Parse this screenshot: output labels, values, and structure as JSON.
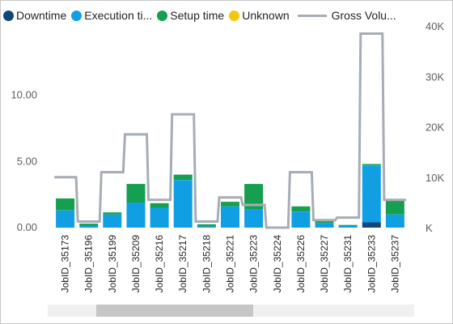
{
  "chart_data": {
    "type": "bar",
    "stacked": true,
    "categories": [
      "JobID_35173",
      "JobID_35196",
      "JobID_35199",
      "JobID_35209",
      "JobID_35216",
      "JobID_35217",
      "JobID_35218",
      "JobID_35221",
      "JobID_35223",
      "JobID_35224",
      "JobID_35226",
      "JobID_35227",
      "JobID_35231",
      "JobID_35233",
      "JobID_35237"
    ],
    "series": [
      {
        "name": "Downtime",
        "color": "#12467a",
        "values": [
          0,
          0,
          0,
          0,
          0,
          0,
          0,
          0,
          0,
          0,
          0,
          0,
          0,
          0.4,
          0
        ]
      },
      {
        "name": "Execution ti...",
        "color": "#119fe3",
        "values": [
          1.3,
          0.15,
          1.0,
          1.9,
          1.5,
          3.6,
          0.1,
          1.6,
          1.4,
          0,
          1.2,
          0.35,
          0.15,
          4.3,
          1.0
        ]
      },
      {
        "name": "Setup time",
        "color": "#14a050",
        "values": [
          0.9,
          0.15,
          0.15,
          1.4,
          0.35,
          0.4,
          0.15,
          0.35,
          1.9,
          0,
          0.4,
          0.2,
          0.05,
          0.1,
          1.1
        ]
      },
      {
        "name": "Unknown",
        "color": "#f2c80f",
        "values": [
          0,
          0,
          0,
          0,
          0,
          0,
          0,
          0,
          0,
          0,
          0,
          0,
          0,
          0,
          0
        ]
      }
    ],
    "line_series": {
      "name": "Gross Volu...",
      "color": "#a6adb4",
      "axis": "right",
      "values": [
        10000,
        1200,
        11000,
        18500,
        5500,
        22500,
        1200,
        6000,
        4500,
        0,
        11000,
        1500,
        2000,
        38500,
        5500
      ]
    },
    "y_ticks": [
      "0.00",
      "5.00",
      "10.00"
    ],
    "ylim": [
      0,
      15.6
    ],
    "y2_ticks": [
      "K",
      "10K",
      "20K",
      "30K",
      "40K"
    ],
    "y2lim": [
      0,
      41000
    ],
    "legend_position": "top-left",
    "grid": false
  },
  "legend": {
    "items": [
      {
        "label": "Downtime",
        "color": "#12467a"
      },
      {
        "label": "Execution ti...",
        "color": "#119fe3"
      },
      {
        "label": "Setup time",
        "color": "#14a050"
      },
      {
        "label": "Unknown",
        "color": "#f2c80f"
      }
    ],
    "line_label": "Gross Volu...",
    "line_color": "#a6adb4"
  }
}
